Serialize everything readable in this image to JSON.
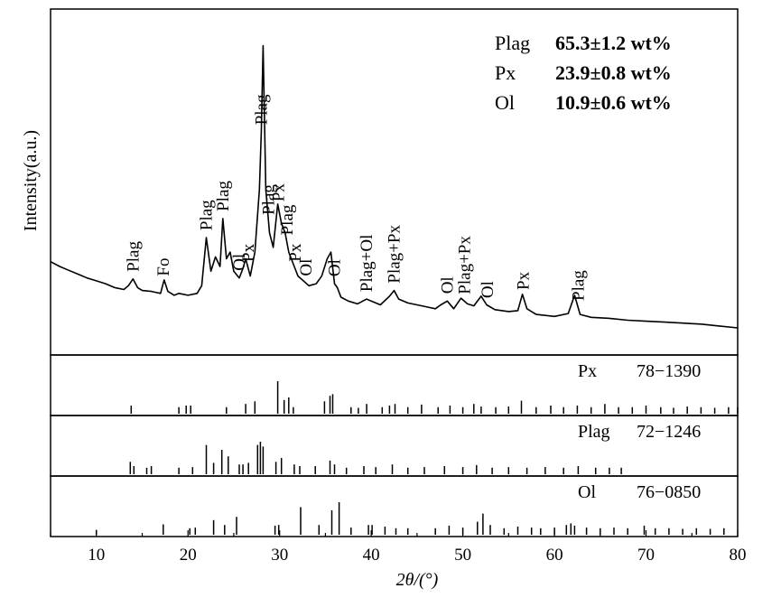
{
  "chart_data": {
    "type": "line",
    "xlabel": "2θ/(°)",
    "ylabel": "Intensity(a.u.)",
    "xlim": [
      5,
      80
    ],
    "xticks": [
      10,
      20,
      30,
      40,
      50,
      60,
      70,
      80
    ],
    "composition": [
      {
        "phase": "Plag",
        "value": "65.3±1.2 wt%"
      },
      {
        "phase": "Px",
        "value": "23.9±0.8 wt%"
      },
      {
        "phase": "Ol",
        "value": "10.9±0.6 wt%"
      }
    ],
    "pattern": {
      "x": [
        5,
        6,
        7,
        8,
        9,
        10,
        11,
        12,
        13,
        13.5,
        14,
        14.5,
        15,
        16,
        17,
        17.4,
        17.8,
        18.5,
        19,
        20,
        21,
        21.5,
        22,
        22.5,
        23,
        23.5,
        23.8,
        24.2,
        24.6,
        25,
        25.6,
        26,
        26.3,
        26.8,
        27.3,
        27.8,
        28,
        28.2,
        28.5,
        28.9,
        29.3,
        29.8,
        30.2,
        30.6,
        31,
        31.6,
        32,
        32.6,
        33.2,
        34,
        34.6,
        35.2,
        35.6,
        36,
        36.3,
        36.7,
        37.5,
        38.5,
        39.5,
        40,
        41,
        42,
        42.5,
        43,
        44,
        45,
        46,
        47,
        47.6,
        48.3,
        49,
        49.8,
        50.5,
        51.2,
        52,
        52.6,
        53.5,
        55,
        56,
        56.5,
        57,
        58,
        60,
        61.5,
        62.2,
        62.8,
        64,
        66,
        68,
        70,
        72,
        74,
        76,
        78,
        80
      ],
      "y": [
        85,
        80,
        76,
        72,
        68,
        65,
        62,
        58,
        56,
        60,
        67,
        58,
        55,
        54,
        52,
        66,
        54,
        50,
        52,
        50,
        52,
        60,
        110,
        75,
        90,
        80,
        130,
        88,
        95,
        75,
        68,
        78,
        88,
        70,
        95,
        160,
        220,
        310,
        160,
        115,
        100,
        145,
        125,
        115,
        95,
        80,
        70,
        65,
        60,
        62,
        70,
        88,
        95,
        62,
        58,
        48,
        44,
        41,
        46,
        44,
        40,
        49,
        55,
        46,
        42,
        40,
        38,
        36,
        40,
        44,
        36,
        47,
        41,
        39,
        49,
        40,
        35,
        33,
        34,
        51,
        36,
        30,
        28,
        31,
        50,
        30,
        27,
        26,
        24,
        23,
        22,
        21,
        20,
        18,
        16
      ],
      "ylim": [
        0,
        320
      ]
    },
    "peak_labels": [
      {
        "text": "Plag",
        "x": 14.0
      },
      {
        "text": "Fo",
        "x": 17.3
      },
      {
        "text": "Plag",
        "x": 22.0
      },
      {
        "text": "Plag",
        "x": 23.8
      },
      {
        "text": "Ol",
        "x": 25.6
      },
      {
        "text": "Px",
        "x": 26.6
      },
      {
        "text": "Plag",
        "x": 28.0
      },
      {
        "text": "Plag",
        "x": 28.8
      },
      {
        "text": "Px",
        "x": 29.9
      },
      {
        "text": "Plag",
        "x": 30.8
      },
      {
        "text": "Px",
        "x": 31.7
      },
      {
        "text": "Ol",
        "x": 32.9
      },
      {
        "text": "Ol",
        "x": 36.0
      },
      {
        "text": "Plag+Ol",
        "x": 39.5
      },
      {
        "text": "Plag+Px",
        "x": 42.5
      },
      {
        "text": "Ol",
        "x": 48.3
      },
      {
        "text": "Plag+Px",
        "x": 50.2
      },
      {
        "text": "Ol",
        "x": 52.7
      },
      {
        "text": "Px",
        "x": 56.6
      },
      {
        "text": "Plag",
        "x": 62.6
      }
    ],
    "references": [
      {
        "phase": "Px",
        "card": "78−1390",
        "sticks": [
          [
            13.8,
            0.25
          ],
          [
            19,
            0.2
          ],
          [
            19.8,
            0.25
          ],
          [
            20.3,
            0.25
          ],
          [
            24.2,
            0.2
          ],
          [
            26.3,
            0.3
          ],
          [
            27.3,
            0.38
          ],
          [
            29.8,
            1.0
          ],
          [
            30.5,
            0.42
          ],
          [
            31.0,
            0.5
          ],
          [
            31.5,
            0.2
          ],
          [
            34.9,
            0.38
          ],
          [
            35.5,
            0.55
          ],
          [
            35.8,
            0.6
          ],
          [
            37.8,
            0.2
          ],
          [
            38.6,
            0.18
          ],
          [
            39.5,
            0.3
          ],
          [
            41.2,
            0.2
          ],
          [
            42.0,
            0.25
          ],
          [
            42.6,
            0.3
          ],
          [
            44.0,
            0.2
          ],
          [
            45.5,
            0.28
          ],
          [
            47.3,
            0.2
          ],
          [
            48.6,
            0.25
          ],
          [
            50.0,
            0.2
          ],
          [
            51.2,
            0.3
          ],
          [
            52.0,
            0.22
          ],
          [
            53.6,
            0.2
          ],
          [
            55.0,
            0.22
          ],
          [
            56.4,
            0.4
          ],
          [
            58.0,
            0.2
          ],
          [
            59.6,
            0.25
          ],
          [
            61.0,
            0.2
          ],
          [
            62.5,
            0.25
          ],
          [
            64.0,
            0.2
          ],
          [
            65.5,
            0.3
          ],
          [
            67.0,
            0.2
          ],
          [
            68.5,
            0.2
          ],
          [
            70.0,
            0.25
          ],
          [
            71.6,
            0.2
          ],
          [
            73.0,
            0.18
          ],
          [
            74.5,
            0.22
          ],
          [
            76.0,
            0.2
          ],
          [
            77.5,
            0.18
          ],
          [
            79.0,
            0.2
          ],
          [
            80.0,
            0.2
          ]
        ]
      },
      {
        "phase": "Plag",
        "card": "72−1246",
        "sticks": [
          [
            13.7,
            0.38
          ],
          [
            14.1,
            0.25
          ],
          [
            15.5,
            0.2
          ],
          [
            16.0,
            0.25
          ],
          [
            19.0,
            0.2
          ],
          [
            20.5,
            0.22
          ],
          [
            22.0,
            0.9
          ],
          [
            22.8,
            0.35
          ],
          [
            23.7,
            0.75
          ],
          [
            24.4,
            0.55
          ],
          [
            25.6,
            0.3
          ],
          [
            26.0,
            0.3
          ],
          [
            26.6,
            0.35
          ],
          [
            27.6,
            0.9
          ],
          [
            27.9,
            1.0
          ],
          [
            28.2,
            0.85
          ],
          [
            29.6,
            0.38
          ],
          [
            30.2,
            0.5
          ],
          [
            31.6,
            0.3
          ],
          [
            32.2,
            0.25
          ],
          [
            33.9,
            0.25
          ],
          [
            35.5,
            0.42
          ],
          [
            36.0,
            0.3
          ],
          [
            37.3,
            0.2
          ],
          [
            39.2,
            0.25
          ],
          [
            40.5,
            0.22
          ],
          [
            42.3,
            0.3
          ],
          [
            44.0,
            0.2
          ],
          [
            45.8,
            0.22
          ],
          [
            48.0,
            0.25
          ],
          [
            50.0,
            0.22
          ],
          [
            51.5,
            0.28
          ],
          [
            53.2,
            0.2
          ],
          [
            55.0,
            0.22
          ],
          [
            57.0,
            0.2
          ],
          [
            59.0,
            0.22
          ],
          [
            61.0,
            0.2
          ],
          [
            62.6,
            0.25
          ],
          [
            64.5,
            0.2
          ],
          [
            66.0,
            0.2
          ],
          [
            67.3,
            0.2
          ]
        ]
      },
      {
        "phase": "Ol",
        "card": "76−0850",
        "sticks": [
          [
            10.0,
            0.15
          ],
          [
            17.3,
            0.32
          ],
          [
            20.2,
            0.2
          ],
          [
            20.8,
            0.22
          ],
          [
            22.8,
            0.45
          ],
          [
            24.0,
            0.3
          ],
          [
            25.3,
            0.55
          ],
          [
            29.5,
            0.28
          ],
          [
            29.9,
            0.3
          ],
          [
            32.3,
            0.85
          ],
          [
            34.3,
            0.3
          ],
          [
            35.7,
            0.75
          ],
          [
            36.5,
            1.0
          ],
          [
            37.8,
            0.22
          ],
          [
            39.7,
            0.3
          ],
          [
            40.1,
            0.3
          ],
          [
            41.5,
            0.25
          ],
          [
            42.7,
            0.2
          ],
          [
            44.0,
            0.2
          ],
          [
            47.0,
            0.2
          ],
          [
            48.5,
            0.28
          ],
          [
            50.0,
            0.22
          ],
          [
            51.6,
            0.4
          ],
          [
            52.2,
            0.65
          ],
          [
            53.0,
            0.3
          ],
          [
            54.5,
            0.2
          ],
          [
            56.0,
            0.25
          ],
          [
            57.5,
            0.22
          ],
          [
            58.5,
            0.2
          ],
          [
            60.0,
            0.22
          ],
          [
            61.3,
            0.3
          ],
          [
            61.8,
            0.35
          ],
          [
            62.2,
            0.28
          ],
          [
            63.5,
            0.22
          ],
          [
            65.0,
            0.2
          ],
          [
            66.5,
            0.22
          ],
          [
            68.0,
            0.2
          ],
          [
            69.8,
            0.28
          ],
          [
            71.0,
            0.2
          ],
          [
            72.5,
            0.2
          ],
          [
            74.0,
            0.18
          ],
          [
            75.5,
            0.2
          ],
          [
            77.0,
            0.18
          ],
          [
            78.5,
            0.2
          ]
        ]
      }
    ]
  }
}
